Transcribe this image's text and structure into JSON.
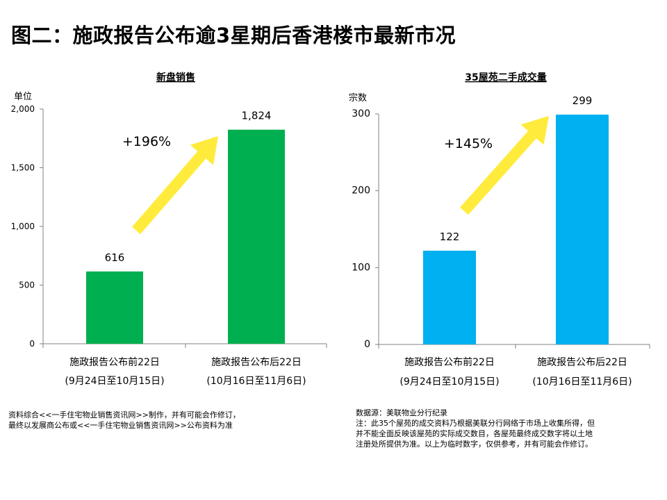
{
  "page": {
    "title": "图二：施政报告公布逾3星期后香港楼市最新市况"
  },
  "chart_data": [
    {
      "type": "bar",
      "title": "新盘销售",
      "ylabel": "单位",
      "ylim": [
        0,
        2000
      ],
      "yticks": [
        "0",
        "500",
        "1,000",
        "1,500",
        "2,000"
      ],
      "ytick_values": [
        0,
        500,
        1000,
        1500,
        2000
      ],
      "categories": [
        {
          "line1": "施政报告公布前22日",
          "line2": "(9月24日至10月15日)"
        },
        {
          "line1": "施政报告公布后22日",
          "line2": "(10月16日至11月6日)"
        }
      ],
      "values": [
        616,
        1824
      ],
      "value_labels": [
        "616",
        "1,824"
      ],
      "annotation": "+196%",
      "bar_color": "#00b050",
      "arrow_color": "#ffeb3b"
    },
    {
      "type": "bar",
      "title": "35屋苑二手成交量",
      "ylabel": "宗数",
      "ylim": [
        0,
        300
      ],
      "yticks": [
        "0",
        "100",
        "200",
        "300"
      ],
      "ytick_values": [
        0,
        100,
        200,
        300
      ],
      "categories": [
        {
          "line1": "施政报告公布前22日",
          "line2": "(9月24日至10月15日)"
        },
        {
          "line1": "施政报告公布后22日",
          "line2": "(10月16日至11月6日)"
        }
      ],
      "values": [
        122,
        299
      ],
      "value_labels": [
        "122",
        "299"
      ],
      "annotation": "+145%",
      "bar_color": "#00b0f0",
      "arrow_color": "#ffeb3b"
    }
  ],
  "notes": {
    "left": [
      "资料综合<<一手住宅物业销售资讯网>>制作，并有可能会作修订，",
      "最终以发展商公布或<<一手住宅物业销售资讯网>>公布资料为准"
    ],
    "right": [
      "数据源：美联物业分行纪录",
      "注：此35个屋苑的成交资料乃根据美联分行网络于市场上收集所得，但",
      "并不能全面反映该屋苑的实际成交数目，各屋苑最终成交数字将以土地",
      "注册处所提供为准。以上为临时数字，仅供参考，并有可能会作修订。"
    ]
  }
}
